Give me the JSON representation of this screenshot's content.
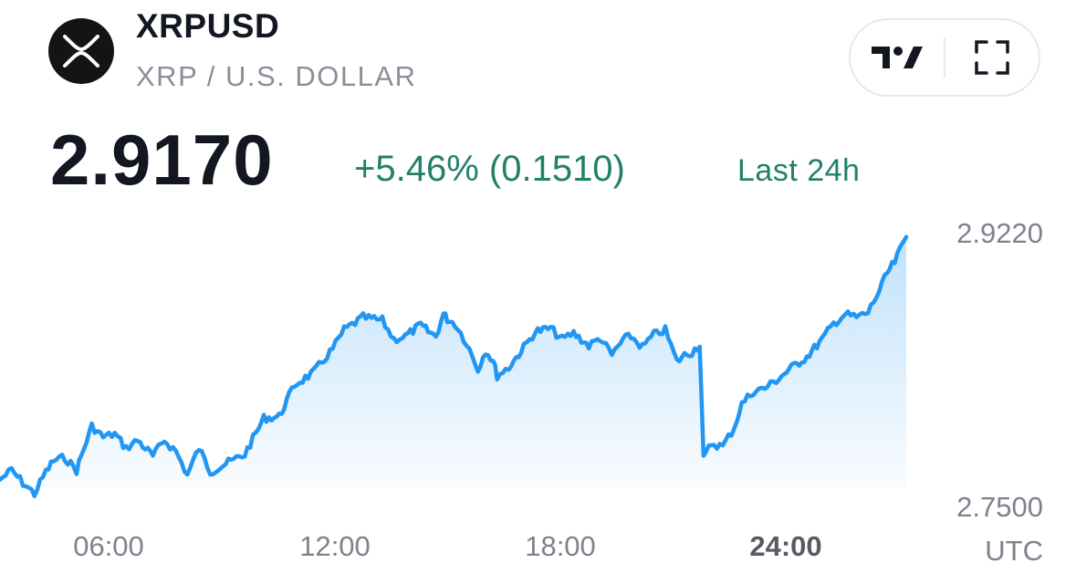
{
  "header": {
    "symbol": "XRPUSD",
    "pair_name": "XRP / U.S. DOLLAR",
    "logo_icon": "xrp-logo-icon"
  },
  "toolbar": {
    "tradingview_icon": "tradingview-logo-icon",
    "fullscreen_icon": "fullscreen-icon"
  },
  "quote": {
    "price": "2.9170",
    "change": "+5.46% (0.1510)",
    "period": "Last 24h",
    "change_color": "#22806a"
  },
  "chart_data": {
    "type": "area",
    "line_color": "#2196f3",
    "fill_color": "#2196f3",
    "ylim": [
      2.75,
      2.922
    ],
    "y_tick_labels": [
      "2.9220",
      "2.7500"
    ],
    "x_tick_labels": [
      "06:00",
      "12:00",
      "18:00",
      "24:00"
    ],
    "x_ticks": [
      6,
      12,
      18,
      24
    ],
    "xlim": [
      2.9,
      26.6
    ],
    "timezone": "UTC",
    "grid": false,
    "x": [
      2.9,
      3.2,
      3.5,
      3.8,
      4.1,
      4.3,
      4.6,
      4.9,
      5.3,
      5.6,
      5.9,
      6.2,
      6.5,
      6.9,
      7.2,
      7.5,
      7.8,
      8.1,
      8.4,
      8.8,
      9.3,
      9.8,
      10.2,
      10.6,
      11.1,
      11.6,
      11.9,
      12.4,
      12.9,
      13.2,
      13.5,
      13.9,
      14.1,
      14.3,
      14.5,
      14.6,
      14.8,
      15.1,
      15.4,
      15.6,
      15.8,
      15.9,
      16.2,
      16.6,
      16.9,
      17.3,
      17.6,
      17.9,
      18.3,
      18.6,
      18.9,
      19.2,
      19.4,
      19.7,
      20.0,
      20.3,
      20.6,
      20.8,
      21.0,
      21.2,
      21.3,
      21.5,
      21.8,
      22.1,
      22.3,
      22.6,
      22.9,
      23.2,
      23.6,
      24.0,
      24.4,
      24.7,
      25.0,
      25.3,
      25.6,
      25.9,
      26.1,
      26.3,
      26.5,
      26.6
    ],
    "y": [
      2.767,
      2.773,
      2.765,
      2.758,
      2.772,
      2.779,
      2.781,
      2.773,
      2.801,
      2.794,
      2.796,
      2.787,
      2.792,
      2.782,
      2.792,
      2.785,
      2.77,
      2.787,
      2.772,
      2.777,
      2.783,
      2.806,
      2.807,
      2.827,
      2.835,
      2.85,
      2.862,
      2.87,
      2.868,
      2.856,
      2.858,
      2.865,
      2.861,
      2.858,
      2.872,
      2.869,
      2.866,
      2.854,
      2.837,
      2.849,
      2.842,
      2.833,
      2.838,
      2.851,
      2.861,
      2.863,
      2.856,
      2.86,
      2.852,
      2.857,
      2.846,
      2.856,
      2.858,
      2.851,
      2.859,
      2.862,
      2.842,
      2.846,
      2.848,
      2.853,
      2.78,
      2.79,
      2.788,
      2.8,
      2.815,
      2.823,
      2.825,
      2.83,
      2.838,
      2.845,
      2.856,
      2.866,
      2.872,
      2.87,
      2.873,
      2.887,
      2.898,
      2.905,
      2.916,
      2.921
    ]
  }
}
